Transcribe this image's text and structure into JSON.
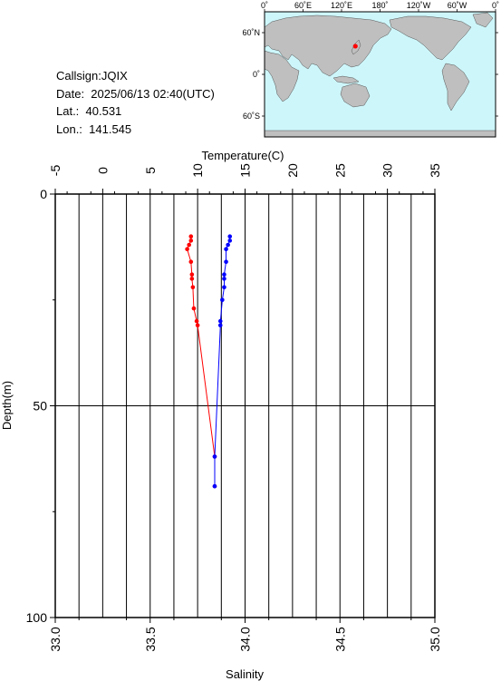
{
  "info": {
    "callsign": "Callsign:JQIX",
    "date": "Date:  2025/06/13 02:40(UTC)",
    "lat": "Lat.:  40.531",
    "lon": "Lon.:  141.545"
  },
  "map": {
    "top_ticks": [
      "0˚",
      "60˚E",
      "120˚E",
      "180˚",
      "120˚W",
      "60˚W",
      "0˚"
    ],
    "lat_ticks": [
      "60˚N",
      "0˚",
      "60˚S"
    ],
    "land_color": "#bfbfbf",
    "ocean_color": "#cdf6fa",
    "marker_color": "#ff0000",
    "station": {
      "lon": 141.545,
      "lat": 40.531
    }
  },
  "chart_data": {
    "type": "line",
    "title": "",
    "ylabel": "Depth(m)",
    "ylim": [
      0,
      100
    ],
    "yticks": [
      "0",
      "50",
      "100"
    ],
    "y_inverted": true,
    "grid": "vertical lines every 0.25 psu / 2.5 °C; horizontal line at 50 m",
    "temperature_axis": {
      "label": "Temperature(C)",
      "range": [
        -5,
        35
      ],
      "ticks": [
        "-5",
        "0",
        "5",
        "10",
        "15",
        "20",
        "25",
        "30",
        "35"
      ]
    },
    "salinity_axis": {
      "label": "Salinity",
      "range": [
        33.0,
        35.0
      ],
      "ticks": [
        "33.0",
        "33.5",
        "34.0",
        "34.5",
        "35.0"
      ]
    },
    "series": [
      {
        "name": "",
        "axis": "temperature",
        "color": "#ff0000",
        "points": [
          {
            "x": 9.3,
            "y": 10
          },
          {
            "x": 9.3,
            "y": 11
          },
          {
            "x": 9.1,
            "y": 12
          },
          {
            "x": 8.9,
            "y": 13
          },
          {
            "x": 9.3,
            "y": 16
          },
          {
            "x": 9.4,
            "y": 19
          },
          {
            "x": 9.4,
            "y": 20
          },
          {
            "x": 9.5,
            "y": 22
          },
          {
            "x": 9.6,
            "y": 27
          },
          {
            "x": 9.9,
            "y": 30
          },
          {
            "x": 10.0,
            "y": 31
          },
          {
            "x": 11.8,
            "y": 62
          },
          {
            "x": 11.8,
            "y": 69
          }
        ]
      },
      {
        "name": "",
        "axis": "salinity",
        "color": "#0000ff",
        "points": [
          {
            "x": 33.92,
            "y": 10
          },
          {
            "x": 33.92,
            "y": 11
          },
          {
            "x": 33.91,
            "y": 12
          },
          {
            "x": 33.9,
            "y": 13
          },
          {
            "x": 33.9,
            "y": 16
          },
          {
            "x": 33.89,
            "y": 19
          },
          {
            "x": 33.89,
            "y": 20
          },
          {
            "x": 33.89,
            "y": 22
          },
          {
            "x": 33.88,
            "y": 25
          },
          {
            "x": 33.87,
            "y": 30
          },
          {
            "x": 33.87,
            "y": 31
          },
          {
            "x": 33.84,
            "y": 62
          },
          {
            "x": 33.84,
            "y": 69
          }
        ]
      }
    ]
  }
}
